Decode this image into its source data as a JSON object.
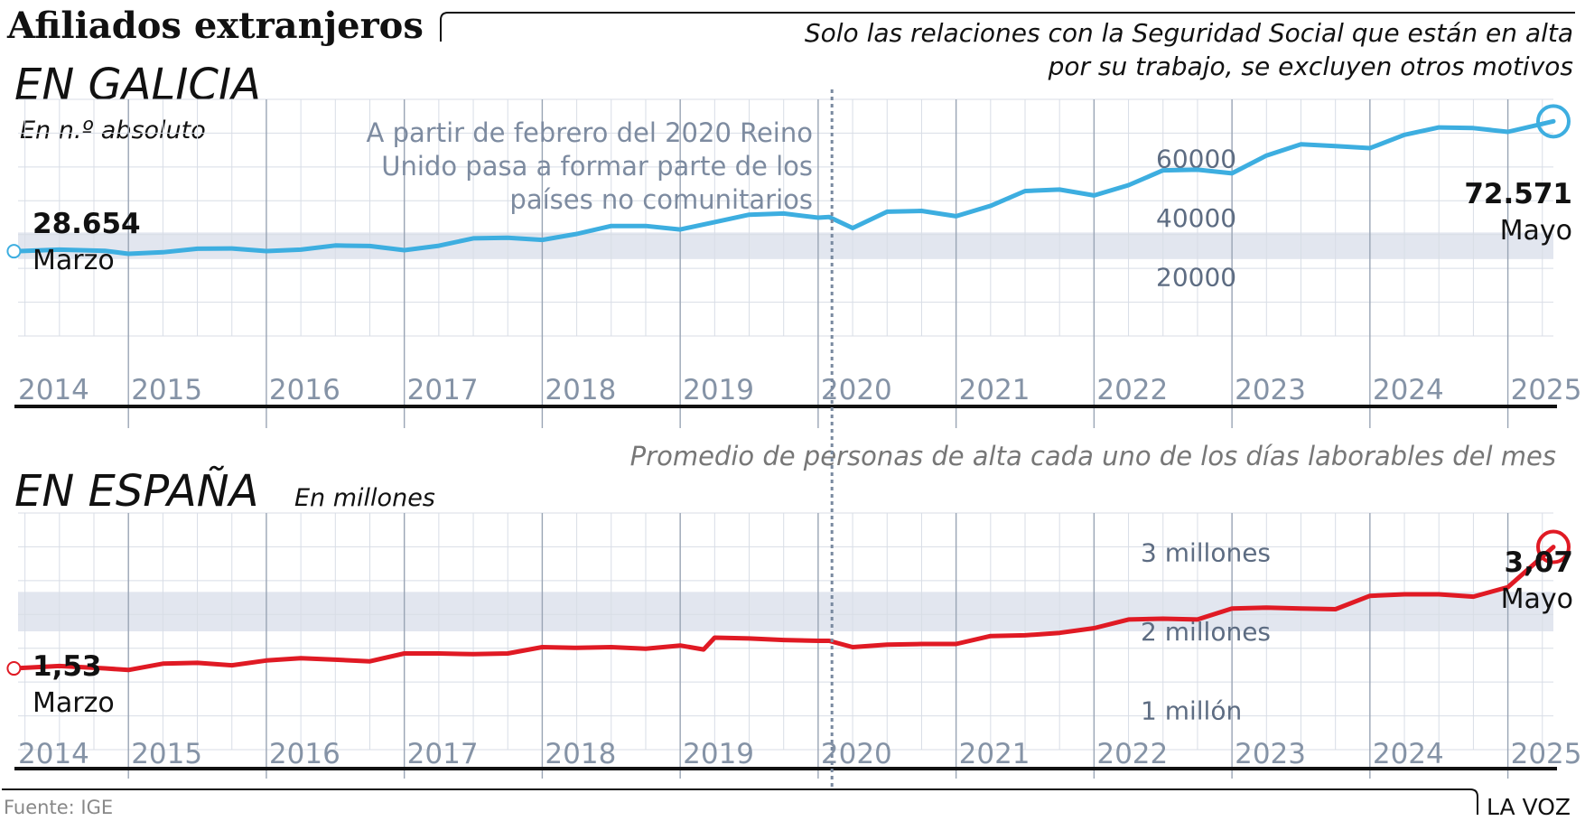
{
  "header": {
    "title": "Afiliados extranjeros",
    "subtitle_line1": "Solo las relaciones con la Seguridad Social que están en alta",
    "subtitle_line2": "por su trabajo, se excluyen otros motivos"
  },
  "footer": {
    "source": "Fuente:  IGE",
    "brand": "LA VOZ"
  },
  "annotation": {
    "line1": "A  partir de febrero del 2020 Reino",
    "line2": "Unido pasa a  formar  parte de los",
    "line3": "países no comunitarios",
    "x": 2020.1
  },
  "colors": {
    "galicia_line": "#3daee0",
    "espana_line": "#e01a24",
    "band": "#e2e6ef",
    "grid": "#d8dde6",
    "marker_line": "#7a8aa0",
    "axis": "#111111"
  },
  "chart_data": [
    {
      "type": "line",
      "title": "EN GALICIA",
      "ylabel": "En n.º absoluto",
      "note": "",
      "xlim": [
        2014.2,
        2025.33
      ],
      "ylim": [
        0,
        80000
      ],
      "band": [
        26000,
        35000
      ],
      "ytick_labels": [
        {
          "value": 20000,
          "label": "20000"
        },
        {
          "value": 40000,
          "label": "40000"
        },
        {
          "value": 60000,
          "label": "60000"
        }
      ],
      "year_labels": [
        "2014",
        "2015",
        "2016",
        "2017",
        "2018",
        "2019",
        "2020",
        "2021",
        "2022",
        "2023",
        "2024",
        "2025"
      ],
      "start_value": "28.654",
      "start_month": "Marzo",
      "end_value": "72.571",
      "end_month": "Mayo",
      "series": [
        {
          "x": [
            2014.17,
            2014.5,
            2014.83,
            2015.0,
            2015.25,
            2015.5,
            2015.75,
            2016.0,
            2016.25,
            2016.5,
            2016.75,
            2017.0,
            2017.25,
            2017.5,
            2017.75,
            2018.0,
            2018.25,
            2018.5,
            2018.75,
            2019.0,
            2019.25,
            2019.5,
            2019.75,
            2020.0,
            2020.08,
            2020.25,
            2020.5,
            2020.75,
            2021.0,
            2021.25,
            2021.5,
            2021.75,
            2022.0,
            2022.25,
            2022.5,
            2022.75,
            2023.0,
            2023.25,
            2023.5,
            2023.75,
            2024.0,
            2024.25,
            2024.5,
            2024.75,
            2025.0,
            2025.33
          ],
          "y": [
            28654,
            29200,
            28800,
            27800,
            28300,
            29500,
            29600,
            28700,
            29200,
            30600,
            30400,
            29000,
            30500,
            33000,
            33200,
            32500,
            34500,
            37200,
            37200,
            36000,
            38500,
            41000,
            41400,
            40000,
            40200,
            36500,
            42000,
            42300,
            40500,
            44000,
            49000,
            49500,
            47500,
            51000,
            56000,
            56200,
            55000,
            61000,
            64800,
            64200,
            63500,
            68000,
            70500,
            70300,
            69000,
            72571
          ]
        }
      ]
    },
    {
      "type": "line",
      "title": "EN ESPAÑA",
      "ylabel": "En millones",
      "note": "Promedio de personas de alta cada uno de los días laborables del mes",
      "xlim": [
        2014.2,
        2025.33
      ],
      "ylim": [
        0.5,
        3.5
      ],
      "band": [
        2.0,
        2.5
      ],
      "ytick_labels": [
        {
          "value": 1.0,
          "label": "1 millón"
        },
        {
          "value": 2.0,
          "label": "2 millones"
        },
        {
          "value": 3.0,
          "label": "3 millones"
        }
      ],
      "year_labels": [
        "2014",
        "2015",
        "2016",
        "2017",
        "2018",
        "2019",
        "2020",
        "2021",
        "2022",
        "2023",
        "2024",
        "2025"
      ],
      "start_value": "1,53",
      "start_month": "Marzo",
      "end_value": "3,07",
      "end_month": "Mayo",
      "series": [
        {
          "x": [
            2014.17,
            2014.5,
            2014.83,
            2015.0,
            2015.25,
            2015.5,
            2015.75,
            2016.0,
            2016.25,
            2016.5,
            2016.75,
            2017.0,
            2017.25,
            2017.5,
            2017.75,
            2018.0,
            2018.25,
            2018.5,
            2018.75,
            2019.0,
            2019.17,
            2019.25,
            2019.5,
            2019.75,
            2020.0,
            2020.08,
            2020.25,
            2020.5,
            2020.75,
            2021.0,
            2021.25,
            2021.5,
            2021.75,
            2022.0,
            2022.25,
            2022.5,
            2022.75,
            2023.0,
            2023.25,
            2023.5,
            2023.75,
            2024.0,
            2024.25,
            2024.5,
            2024.75,
            2025.0,
            2025.33
          ],
          "y": [
            1.53,
            1.56,
            1.53,
            1.51,
            1.59,
            1.6,
            1.57,
            1.63,
            1.66,
            1.64,
            1.62,
            1.72,
            1.72,
            1.71,
            1.72,
            1.8,
            1.79,
            1.8,
            1.78,
            1.82,
            1.77,
            1.92,
            1.91,
            1.89,
            1.88,
            1.88,
            1.8,
            1.83,
            1.84,
            1.84,
            1.94,
            1.95,
            1.98,
            2.04,
            2.15,
            2.16,
            2.15,
            2.29,
            2.3,
            2.29,
            2.28,
            2.45,
            2.47,
            2.47,
            2.44,
            2.56,
            3.07
          ]
        }
      ]
    }
  ]
}
